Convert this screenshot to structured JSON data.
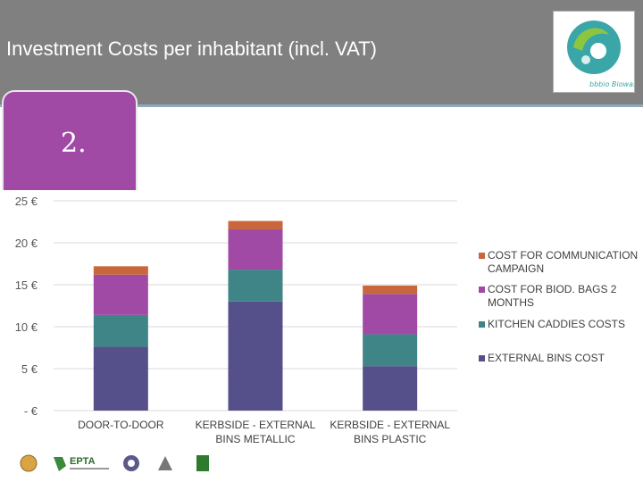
{
  "header": {
    "title": "Investment Costs per inhabitant (incl. VAT)",
    "logo_text": "Bbbio Biowaste",
    "accent_color": "#808080"
  },
  "tab": {
    "number": "2."
  },
  "footer": {
    "partner_logos": [
      "logo-1",
      "EPTA",
      "logo-3",
      "logo-4",
      "logo-5"
    ],
    "epta_label": "EPTA"
  },
  "chart_data": {
    "type": "bar",
    "stacked": true,
    "categories": [
      "DOOR-TO-DOOR",
      "KERBSIDE - EXTERNAL BINS METALLIC",
      "KERBSIDE - EXTERNAL BINS PLASTIC"
    ],
    "category_lines": [
      [
        "DOOR-TO-DOOR"
      ],
      [
        "KERBSIDE - EXTERNAL",
        "BINS METALLIC"
      ],
      [
        "KERBSIDE - EXTERNAL",
        "BINS PLASTIC"
      ]
    ],
    "series": [
      {
        "name": "EXTERNAL BINS COST",
        "legend_lines": [
          "EXTERNAL BINS COST"
        ],
        "color": "#56508a",
        "values": [
          7.6,
          13.0,
          5.3
        ]
      },
      {
        "name": "KITCHEN CADDIES COSTS",
        "legend_lines": [
          "KITCHEN CADDIES COSTS"
        ],
        "color": "#3f8487",
        "values": [
          3.8,
          3.8,
          3.8
        ]
      },
      {
        "name": "COST FOR BIOD. BAGS 2 MONTHS",
        "legend_lines": [
          "COST FOR BIOD. BAGS 2",
          "MONTHS"
        ],
        "color": "#a04aa5",
        "values": [
          4.8,
          4.8,
          4.8
        ]
      },
      {
        "name": "COST FOR COMMUNICATION CAMPAIGN",
        "legend_lines": [
          "COST FOR COMMUNICATION",
          "CAMPAIGN"
        ],
        "color": "#c9673c",
        "values": [
          1.0,
          1.0,
          1.0
        ]
      }
    ],
    "yticks": [
      0,
      5,
      10,
      15,
      20,
      25
    ],
    "ytick_labels": [
      "-   €",
      "5 €",
      "10 €",
      "15 €",
      "20 €",
      "25 €"
    ],
    "ylim": [
      0,
      25
    ],
    "grid": true,
    "legend_position": "right"
  }
}
